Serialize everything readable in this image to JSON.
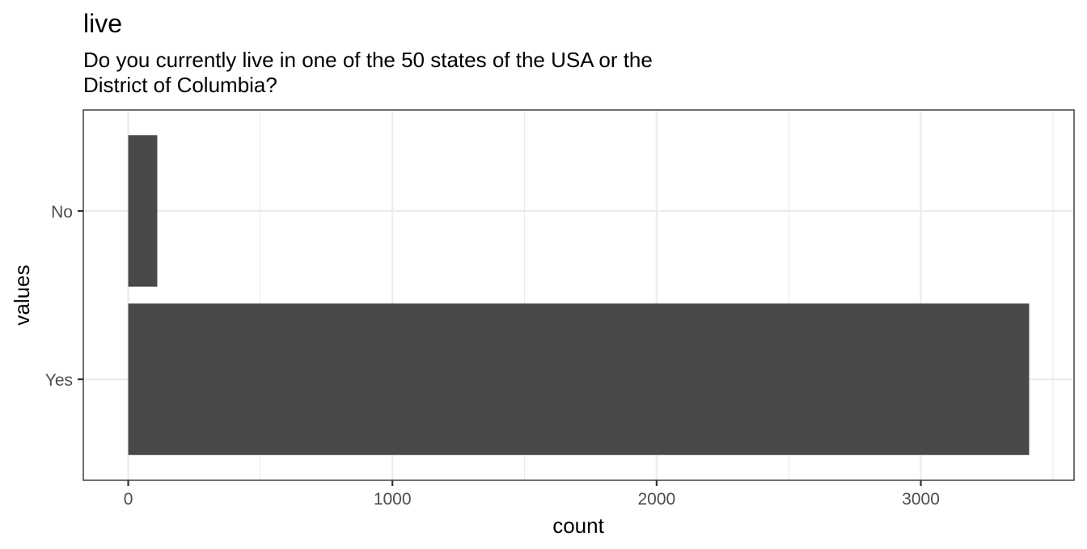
{
  "chart_data": {
    "type": "bar",
    "orientation": "horizontal",
    "title": "live",
    "subtitle_lines": [
      "Do you currently live in one of the 50 states of the USA or the",
      "District of Columbia?"
    ],
    "xlabel": "count",
    "ylabel": "values",
    "categories": [
      "Yes",
      "No"
    ],
    "values": [
      3410,
      110
    ],
    "xlim": [
      -170,
      3580
    ],
    "x_ticks": [
      0,
      1000,
      2000,
      3000
    ],
    "x_tick_labels": [
      "0",
      "1000",
      "2000",
      "3000"
    ],
    "x_minor_ticks": [
      500,
      1500,
      2500,
      3500
    ],
    "grid": true,
    "bar_color": "#494949",
    "theme": "bw"
  }
}
